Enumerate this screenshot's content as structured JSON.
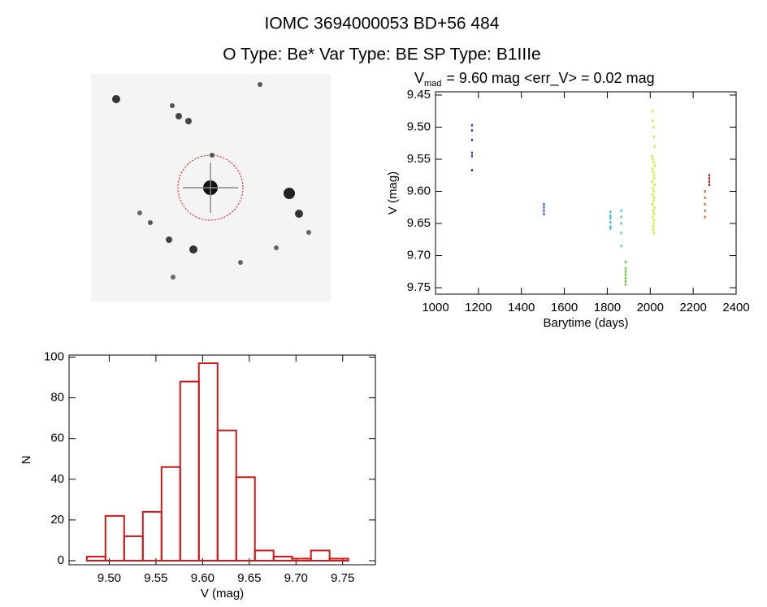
{
  "header": {
    "title": "IOMC 3694000053    BD+56    484",
    "subtitle": "O Type: Be*  Var Type: BE  SP Type: B1IIIe"
  },
  "chart_data": [
    {
      "type": "scatter",
      "title_main": "V",
      "title_sub": "mad",
      "title_rest": "= 9.60 mag <err_V> = 0.02 mag",
      "x_label": "Barytime (days)",
      "y_label": "V (mag)",
      "xlim": [
        1000,
        2400
      ],
      "xticks": [
        1000,
        1200,
        1400,
        1600,
        1800,
        2000,
        2200,
        2400
      ],
      "ylim": [
        9.76,
        9.445
      ],
      "yticks": [
        9.45,
        {
          "value": 9.5,
          "label": "9.50"
        },
        9.55,
        {
          "value": 9.6,
          "label": "9.60"
        },
        9.65,
        {
          "value": 9.7,
          "label": "9.70"
        },
        9.75
      ],
      "series": [
        {
          "color": "#5a1aa0",
          "x": [
            1170,
            1170,
            1170,
            1170,
            1170,
            1170
          ],
          "values": [
            9.497,
            9.505,
            9.52,
            9.54,
            9.545,
            9.567
          ]
        },
        {
          "color": "#2848c0",
          "x": [
            1505,
            1505,
            1505,
            1505
          ],
          "values": [
            9.62,
            9.625,
            9.63,
            9.635
          ]
        },
        {
          "color": "#20b8e0",
          "x": [
            1815,
            1815,
            1815,
            1815,
            1815,
            1815
          ],
          "values": [
            9.632,
            9.638,
            9.642,
            9.648,
            9.655,
            9.658
          ]
        },
        {
          "color": "#30d0a0",
          "x": [
            1865,
            1865,
            1865,
            1865,
            1865
          ],
          "values": [
            9.63,
            9.64,
            9.65,
            9.665,
            9.685
          ]
        },
        {
          "color": "#50d020",
          "x": [
            1885,
            1885,
            1885,
            1885,
            1885,
            1885,
            1885
          ],
          "values": [
            9.71,
            9.72,
            9.725,
            9.73,
            9.735,
            9.74,
            9.745
          ]
        },
        {
          "color": "#c8f010",
          "x": [
            2010,
            2012,
            2015,
            2018,
            2020,
            2008,
            2013,
            2016,
            2022,
            2011,
            2014,
            2019,
            2017,
            2009,
            2021,
            2013,
            2016,
            2012,
            2018,
            2015,
            2010,
            2020,
            2014,
            2017,
            2011,
            2019,
            2016,
            2013,
            2015,
            2018
          ],
          "values": [
            9.475,
            9.49,
            9.5,
            9.515,
            9.53,
            9.545,
            9.55,
            9.555,
            9.56,
            9.565,
            9.57,
            9.575,
            9.58,
            9.585,
            9.59,
            9.595,
            9.6,
            9.605,
            9.61,
            9.615,
            9.62,
            9.625,
            9.63,
            9.635,
            9.64,
            9.645,
            9.65,
            9.655,
            9.66,
            9.665
          ]
        },
        {
          "color": "#d06010",
          "x": [
            2255,
            2255,
            2255,
            2255,
            2255
          ],
          "values": [
            9.6,
            9.61,
            9.62,
            9.63,
            9.64
          ]
        },
        {
          "color": "#c01010",
          "x": [
            2275,
            2275,
            2275,
            2275
          ],
          "values": [
            9.575,
            9.58,
            9.585,
            9.59
          ]
        }
      ]
    },
    {
      "type": "histogram",
      "x_label": "V (mag)",
      "y_label": "N",
      "color": "#d01818",
      "bins": [
        9.476,
        9.496,
        9.516,
        9.536,
        9.556,
        9.576,
        9.596,
        9.616,
        9.636,
        9.656,
        9.676,
        9.696,
        9.716,
        9.736,
        9.756
      ],
      "values": [
        2,
        22,
        12,
        24,
        46,
        88,
        97,
        64,
        41,
        5,
        2,
        1,
        5,
        1
      ],
      "xlim": [
        9.457,
        9.785
      ],
      "xticks": [
        {
          "value": 9.5,
          "label": "9.50"
        },
        9.55,
        {
          "value": 9.6,
          "label": "9.60"
        },
        9.65,
        {
          "value": 9.7,
          "label": "9.70"
        },
        9.75
      ],
      "ylim": [
        -2,
        101
      ],
      "yticks": [
        0,
        20,
        40,
        60,
        80,
        100
      ]
    }
  ]
}
